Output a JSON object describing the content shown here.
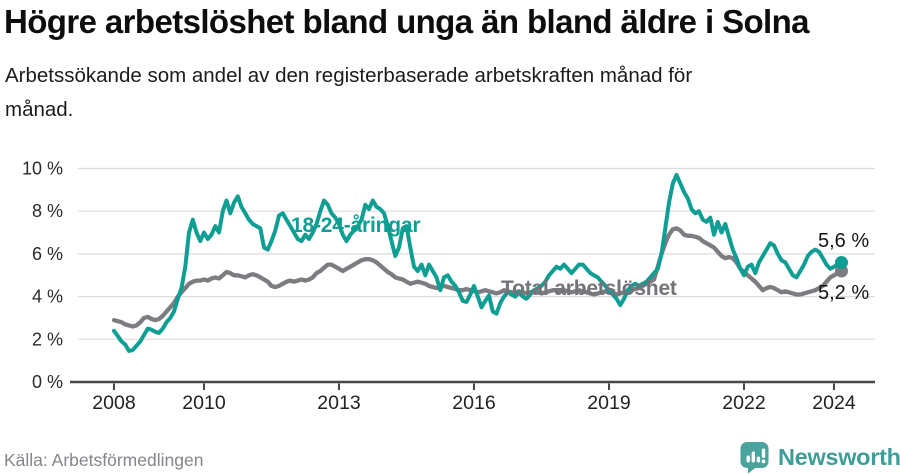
{
  "header": {
    "title": "Högre arbetslöshet bland unga än bland äldre i Solna",
    "subtitle": "Arbetssökande som andel av den registerbaserade arbetskraften månad för\nmånad."
  },
  "chart_data": {
    "type": "line",
    "title": "Högre arbetslöshet bland unga än bland äldre i Solna",
    "xlabel": "",
    "ylabel": "",
    "x_start_year": 2008,
    "points_per_year": 12,
    "x_ticks": [
      2008,
      2010,
      2013,
      2016,
      2019,
      2022,
      2024
    ],
    "y_ticks": [
      0,
      2,
      4,
      6,
      8,
      10
    ],
    "y_tick_labels": [
      "0 %",
      "2 %",
      "4 %",
      "6 %",
      "8 %",
      "10 %"
    ],
    "ylim": [
      0,
      10
    ],
    "grid": true,
    "legend": "inline-labels",
    "series": [
      {
        "name": "18-24-åringar",
        "color": "#0f9e93",
        "end_label": "5,6 %",
        "end_value": 5.6,
        "values": [
          2.4,
          2.15,
          1.9,
          1.75,
          1.45,
          1.5,
          1.7,
          1.9,
          2.2,
          2.5,
          2.45,
          2.35,
          2.3,
          2.5,
          2.8,
          3.0,
          3.3,
          3.9,
          4.4,
          5.4,
          7.0,
          7.6,
          7.0,
          6.6,
          7.0,
          6.7,
          6.9,
          7.3,
          7.0,
          8.0,
          8.5,
          7.9,
          8.4,
          8.7,
          8.2,
          7.9,
          7.6,
          7.4,
          7.3,
          7.2,
          6.3,
          6.2,
          6.6,
          7.1,
          7.8,
          7.9,
          7.6,
          7.3,
          7.0,
          6.7,
          6.6,
          6.9,
          6.7,
          7.0,
          7.4,
          8.0,
          8.5,
          8.3,
          7.9,
          7.7,
          7.4,
          6.9,
          6.6,
          6.9,
          7.1,
          7.3,
          7.6,
          8.3,
          8.1,
          8.5,
          8.2,
          8.1,
          7.9,
          7.3,
          6.6,
          5.9,
          6.3,
          7.2,
          7.3,
          6.3,
          5.4,
          5.2,
          5.5,
          5.0,
          5.5,
          5.2,
          4.9,
          4.3,
          4.9,
          5.0,
          4.7,
          4.5,
          4.2,
          3.8,
          3.75,
          4.1,
          4.5,
          4.0,
          3.5,
          3.8,
          4.05,
          3.3,
          3.2,
          3.7,
          4.0,
          4.2,
          4.1,
          4.0,
          4.2,
          4.0,
          3.9,
          4.1,
          4.3,
          4.4,
          4.5,
          4.7,
          5.0,
          5.2,
          5.4,
          5.3,
          5.5,
          5.3,
          5.1,
          5.3,
          5.5,
          5.5,
          5.3,
          5.1,
          5.0,
          4.9,
          4.7,
          4.5,
          4.3,
          4.1,
          3.9,
          3.6,
          3.9,
          4.3,
          4.5,
          4.6,
          4.5,
          4.6,
          4.7,
          4.9,
          5.1,
          5.3,
          6.0,
          7.2,
          8.4,
          9.3,
          9.7,
          9.3,
          8.9,
          8.6,
          8.1,
          7.9,
          8.0,
          7.6,
          7.5,
          7.7,
          6.9,
          7.5,
          7.0,
          7.4,
          6.8,
          6.2,
          5.8,
          5.3,
          5.0,
          5.4,
          5.5,
          5.1,
          5.6,
          5.9,
          6.2,
          6.5,
          6.4,
          6.0,
          5.7,
          5.6,
          5.3,
          5.0,
          4.9,
          5.2,
          5.5,
          5.9,
          6.1,
          6.2,
          6.1,
          5.8,
          5.5,
          5.3,
          5.4,
          5.5,
          5.6
        ]
      },
      {
        "name": "Total arbetslöshet",
        "color": "#7c7c81",
        "end_label": "5,2 %",
        "end_value": 5.2,
        "values": [
          2.9,
          2.85,
          2.8,
          2.7,
          2.65,
          2.6,
          2.65,
          2.8,
          3.0,
          3.05,
          2.95,
          2.9,
          2.95,
          3.1,
          3.3,
          3.5,
          3.7,
          4.0,
          4.2,
          4.4,
          4.6,
          4.7,
          4.75,
          4.75,
          4.8,
          4.75,
          4.85,
          4.9,
          4.85,
          5.0,
          5.15,
          5.1,
          5.0,
          5.0,
          4.95,
          4.9,
          5.0,
          5.05,
          5.0,
          4.9,
          4.8,
          4.7,
          4.5,
          4.45,
          4.5,
          4.6,
          4.7,
          4.75,
          4.7,
          4.75,
          4.8,
          4.75,
          4.8,
          4.9,
          5.1,
          5.2,
          5.35,
          5.5,
          5.5,
          5.4,
          5.3,
          5.2,
          5.3,
          5.4,
          5.5,
          5.6,
          5.7,
          5.75,
          5.75,
          5.7,
          5.6,
          5.45,
          5.3,
          5.15,
          5.05,
          4.9,
          4.85,
          4.8,
          4.7,
          4.6,
          4.65,
          4.7,
          4.65,
          4.6,
          4.5,
          4.45,
          4.4,
          4.45,
          4.5,
          4.45,
          4.4,
          4.35,
          4.3,
          4.3,
          4.35,
          4.3,
          4.25,
          4.2,
          4.25,
          4.3,
          4.25,
          4.2,
          4.15,
          4.2,
          4.3,
          4.25,
          4.2,
          4.2,
          4.25,
          4.2,
          4.15,
          4.2,
          4.25,
          4.2,
          4.15,
          4.2,
          4.25,
          4.3,
          4.3,
          4.25,
          4.3,
          4.25,
          4.2,
          4.25,
          4.3,
          4.25,
          4.2,
          4.15,
          4.1,
          4.15,
          4.2,
          4.25,
          4.2,
          4.15,
          4.1,
          4.15,
          4.2,
          4.25,
          4.3,
          4.35,
          4.4,
          4.5,
          4.6,
          4.7,
          4.8,
          5.4,
          6.0,
          6.5,
          6.9,
          7.15,
          7.2,
          7.1,
          6.9,
          6.85,
          6.85,
          6.8,
          6.75,
          6.6,
          6.5,
          6.4,
          6.3,
          6.1,
          5.9,
          5.8,
          5.85,
          5.8,
          5.6,
          5.3,
          5.15,
          5.0,
          4.85,
          4.7,
          4.5,
          4.3,
          4.4,
          4.45,
          4.4,
          4.3,
          4.2,
          4.25,
          4.2,
          4.15,
          4.1,
          4.1,
          4.15,
          4.2,
          4.25,
          4.3,
          4.4,
          4.5,
          4.7,
          4.9,
          5.0,
          5.1,
          5.2
        ]
      }
    ]
  },
  "footer": {
    "source": "Källa: Arbetsförmedlingen",
    "brand": "Newsworthy"
  },
  "colors": {
    "youth_line": "#0f9e93",
    "total_line": "#7c7c81",
    "logo_teal": "#3f9d97",
    "gridline": "#dcdcde",
    "axis": "#47474c"
  }
}
